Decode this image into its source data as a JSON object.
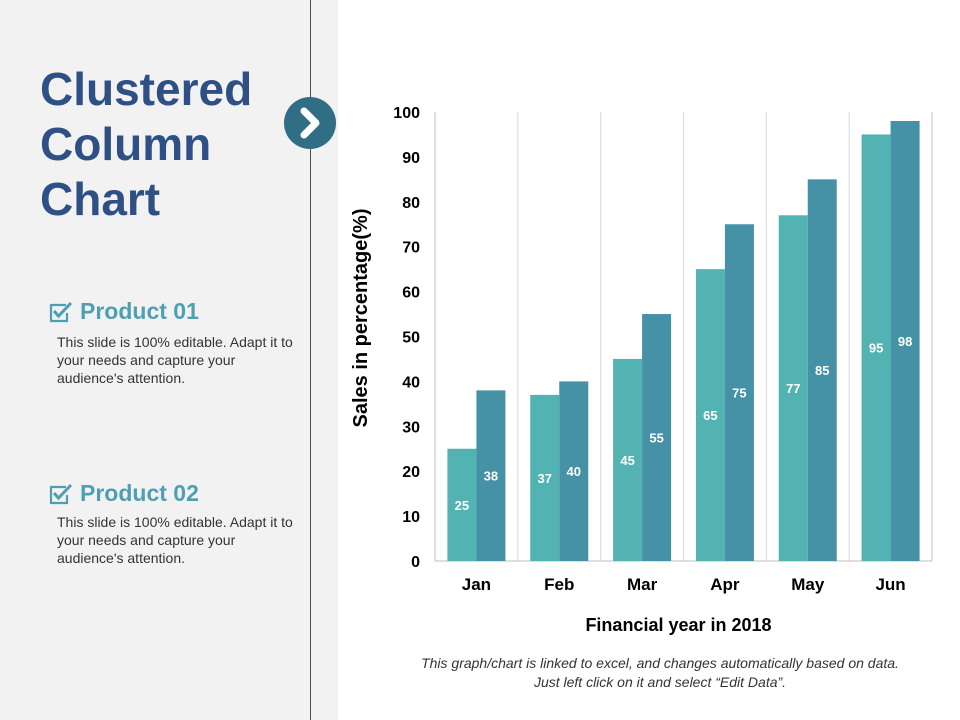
{
  "slide": {
    "title_lines": [
      "Clustered",
      "Column",
      "Chart"
    ],
    "arrow_icon": "chevron-right-icon",
    "products": [
      {
        "icon": "checkbox-checked-icon",
        "title": "Product 01",
        "description": "This slide is 100% editable. Adapt it to your needs and capture your audience's attention."
      },
      {
        "icon": "checkbox-checked-icon",
        "title": "Product 02",
        "description": "This slide is 100% editable. Adapt it to your needs and capture your audience's attention."
      }
    ],
    "footnote_lines": [
      "This graph/chart is linked to excel, and changes automatically based on data.",
      "Just left click on it and select “Edit Data”."
    ]
  },
  "colors": {
    "title": "#2e5085",
    "accent": "#4e9fb3",
    "arrow_circle": "#2f6e85",
    "series_1": "#52b3b2",
    "series_2": "#4591a5"
  },
  "chart_data": {
    "type": "bar",
    "title": "",
    "xlabel": "Financial year in 2018",
    "ylabel": "Sales in percentage(%)",
    "categories": [
      "Jan",
      "Feb",
      "Mar",
      "Apr",
      "May",
      "Jun"
    ],
    "series": [
      {
        "values": [
          25,
          37,
          45,
          65,
          77,
          95
        ]
      },
      {
        "values": [
          38,
          40,
          55,
          75,
          85,
          98
        ]
      }
    ],
    "ylim": [
      0,
      100
    ],
    "yticks": [
      0,
      10,
      20,
      30,
      40,
      50,
      60,
      70,
      80,
      90,
      100
    ],
    "grid": "vertical category separators",
    "legend": "none",
    "data_labels": true
  }
}
